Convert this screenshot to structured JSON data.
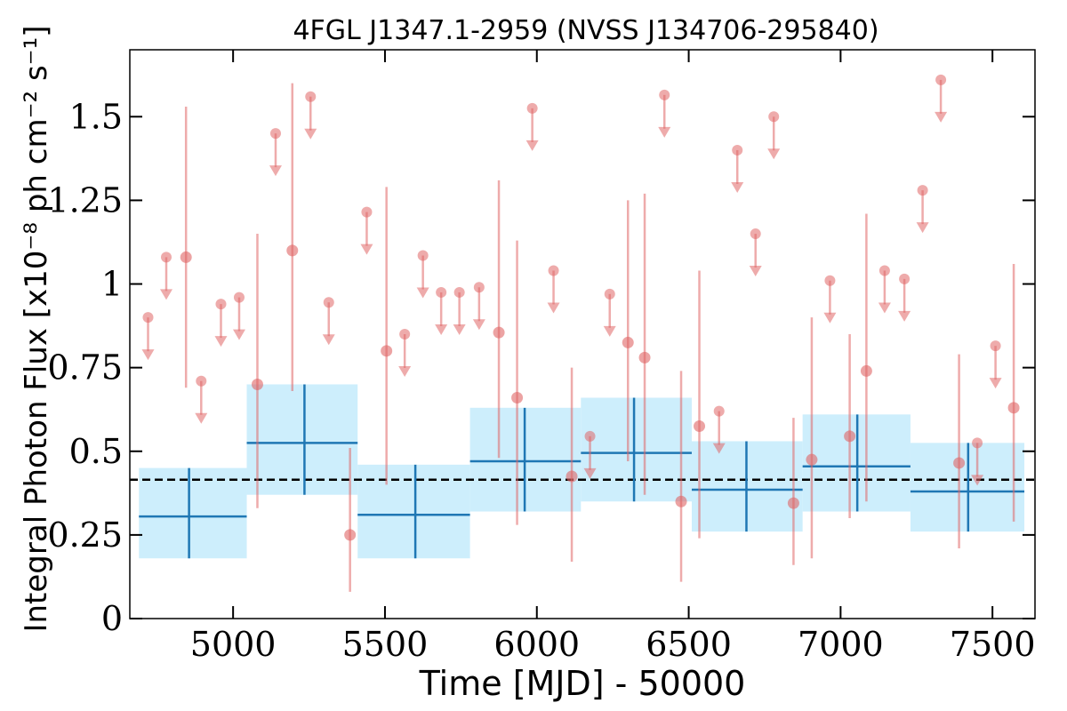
{
  "chart_data": {
    "type": "scatter",
    "title": "4FGL J1347.1-2959 (NVSS J134706-295840)",
    "xlabel": "Time [MJD] - 50000",
    "ylabel": "Integral Photon Flux [x10⁻⁸ ph cm⁻² s⁻¹]",
    "xlim": [
      4660,
      7640
    ],
    "ylim": [
      0,
      1.7
    ],
    "x_ticks": [
      5000,
      5500,
      6000,
      6500,
      7000,
      7500
    ],
    "x_tick_labels": [
      "5000",
      "5500",
      "6000",
      "6500",
      "7000",
      "7500"
    ],
    "y_ticks": [
      0,
      0.25,
      0.5,
      0.75,
      1,
      1.25,
      1.5
    ],
    "y_tick_labels": [
      "0",
      "0.25",
      "0.5",
      "0.75",
      "1",
      "1.25",
      "1.5"
    ],
    "grid": false,
    "colors": {
      "short_bins": "#e06666",
      "long_bins": "#1f77b4",
      "band_fill": "#cdeefc",
      "mean_line": "#000000"
    },
    "mean_flux": 0.415,
    "long_bins": [
      {
        "x": 4855,
        "x_lo": 4690,
        "x_hi": 5045,
        "y": 0.305,
        "y_lo": 0.18,
        "y_hi": 0.45
      },
      {
        "x": 5235,
        "x_lo": 5045,
        "x_hi": 5410,
        "y": 0.525,
        "y_lo": 0.37,
        "y_hi": 0.7
      },
      {
        "x": 5600,
        "x_lo": 5410,
        "x_hi": 5780,
        "y": 0.31,
        "y_lo": 0.18,
        "y_hi": 0.46
      },
      {
        "x": 5960,
        "x_lo": 5780,
        "x_hi": 6145,
        "y": 0.47,
        "y_lo": 0.32,
        "y_hi": 0.63
      },
      {
        "x": 6320,
        "x_lo": 6145,
        "x_hi": 6510,
        "y": 0.495,
        "y_lo": 0.35,
        "y_hi": 0.66
      },
      {
        "x": 6690,
        "x_lo": 6510,
        "x_hi": 6875,
        "y": 0.385,
        "y_lo": 0.26,
        "y_hi": 0.53
      },
      {
        "x": 7055,
        "x_lo": 6875,
        "x_hi": 7230,
        "y": 0.455,
        "y_lo": 0.32,
        "y_hi": 0.61
      },
      {
        "x": 7420,
        "x_lo": 7230,
        "x_hi": 7605,
        "y": 0.38,
        "y_lo": 0.26,
        "y_hi": 0.525
      }
    ],
    "detections": [
      {
        "x": 4845,
        "y": 1.08,
        "y_lo": 0.69,
        "y_hi": 1.53
      },
      {
        "x": 5080,
        "y": 0.7,
        "y_lo": 0.33,
        "y_hi": 1.15
      },
      {
        "x": 5195,
        "y": 1.1,
        "y_lo": 0.68,
        "y_hi": 1.6
      },
      {
        "x": 5385,
        "y": 0.25,
        "y_lo": 0.08,
        "y_hi": 0.51
      },
      {
        "x": 5505,
        "y": 0.8,
        "y_lo": 0.4,
        "y_hi": 1.29
      },
      {
        "x": 5875,
        "y": 0.855,
        "y_lo": 0.48,
        "y_hi": 1.31
      },
      {
        "x": 5935,
        "y": 0.66,
        "y_lo": 0.28,
        "y_hi": 1.13
      },
      {
        "x": 6115,
        "y": 0.425,
        "y_lo": 0.17,
        "y_hi": 0.75
      },
      {
        "x": 6300,
        "y": 0.825,
        "y_lo": 0.47,
        "y_hi": 1.25
      },
      {
        "x": 6355,
        "y": 0.78,
        "y_lo": 0.37,
        "y_hi": 1.27
      },
      {
        "x": 6475,
        "y": 0.35,
        "y_lo": 0.11,
        "y_hi": 0.74
      },
      {
        "x": 6535,
        "y": 0.575,
        "y_lo": 0.24,
        "y_hi": 1.04
      },
      {
        "x": 6845,
        "y": 0.345,
        "y_lo": 0.16,
        "y_hi": 0.6
      },
      {
        "x": 6905,
        "y": 0.475,
        "y_lo": 0.18,
        "y_hi": 0.9
      },
      {
        "x": 7030,
        "y": 0.545,
        "y_lo": 0.3,
        "y_hi": 0.85
      },
      {
        "x": 7085,
        "y": 0.74,
        "y_lo": 0.35,
        "y_hi": 1.21
      },
      {
        "x": 7390,
        "y": 0.465,
        "y_lo": 0.21,
        "y_hi": 0.79
      },
      {
        "x": 7570,
        "y": 0.63,
        "y_lo": 0.29,
        "y_hi": 1.06
      }
    ],
    "upper_limits": [
      {
        "x": 4720,
        "y": 0.9
      },
      {
        "x": 4780,
        "y": 1.08
      },
      {
        "x": 4895,
        "y": 0.71
      },
      {
        "x": 4960,
        "y": 0.94
      },
      {
        "x": 5020,
        "y": 0.96
      },
      {
        "x": 5140,
        "y": 1.45
      },
      {
        "x": 5255,
        "y": 1.56
      },
      {
        "x": 5315,
        "y": 0.945
      },
      {
        "x": 5440,
        "y": 1.215
      },
      {
        "x": 5565,
        "y": 0.85
      },
      {
        "x": 5625,
        "y": 1.085
      },
      {
        "x": 5685,
        "y": 0.975
      },
      {
        "x": 5745,
        "y": 0.975
      },
      {
        "x": 5810,
        "y": 0.99
      },
      {
        "x": 5985,
        "y": 1.525
      },
      {
        "x": 6055,
        "y": 1.04
      },
      {
        "x": 6175,
        "y": 0.545
      },
      {
        "x": 6240,
        "y": 0.97
      },
      {
        "x": 6420,
        "y": 1.565
      },
      {
        "x": 6600,
        "y": 0.62
      },
      {
        "x": 6660,
        "y": 1.4
      },
      {
        "x": 6720,
        "y": 1.15
      },
      {
        "x": 6780,
        "y": 1.5
      },
      {
        "x": 6965,
        "y": 1.01
      },
      {
        "x": 7145,
        "y": 1.04
      },
      {
        "x": 7210,
        "y": 1.015
      },
      {
        "x": 7270,
        "y": 1.28
      },
      {
        "x": 7330,
        "y": 1.61
      },
      {
        "x": 7450,
        "y": 0.525
      },
      {
        "x": 7510,
        "y": 0.815
      }
    ]
  }
}
